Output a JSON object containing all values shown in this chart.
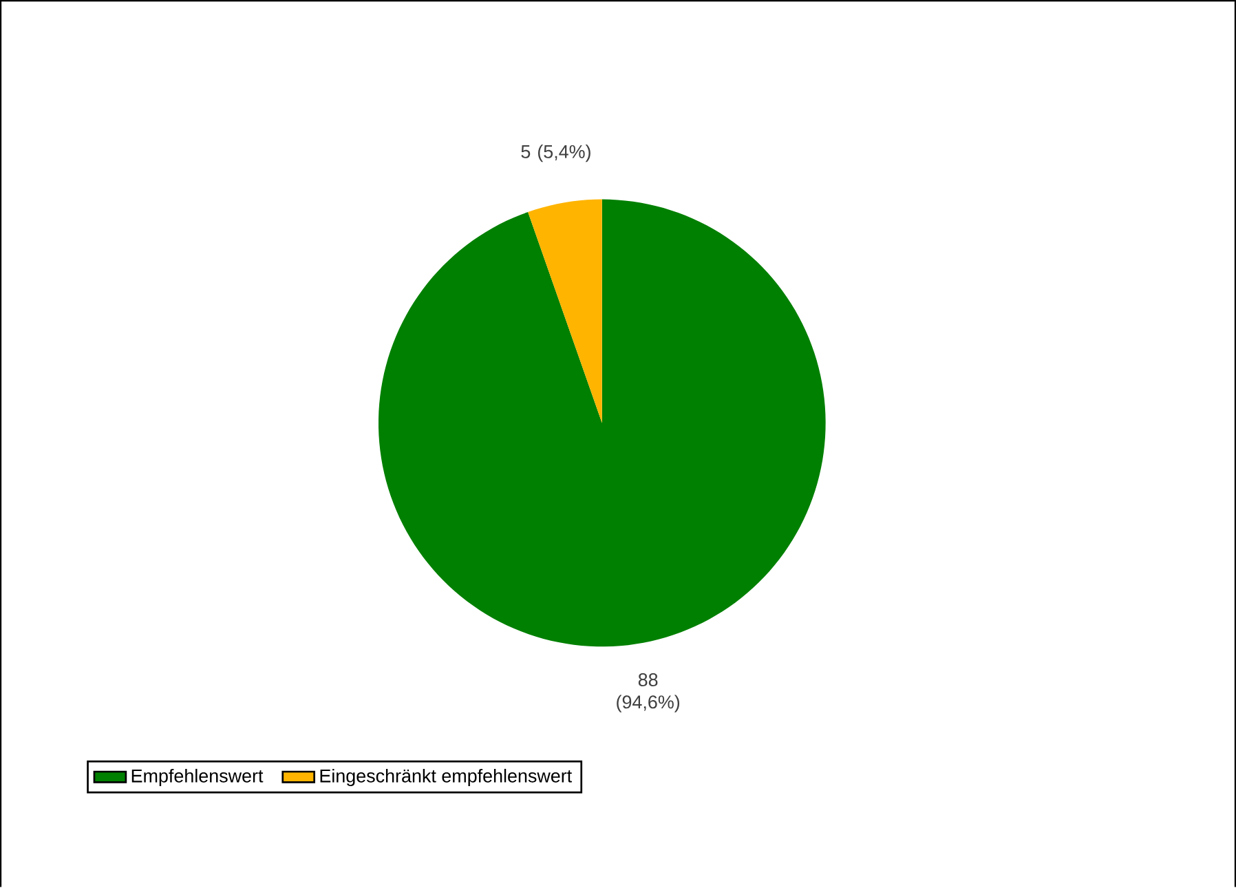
{
  "chart_data": {
    "type": "pie",
    "categories": [
      "Empfehlenswert",
      "Eingeschränkt empfehlenswert"
    ],
    "values": [
      88,
      5
    ],
    "colors": [
      "#008000",
      "#ffb400"
    ],
    "value_labels": [
      "88 (94,6%)",
      "5 (5,4%)"
    ],
    "legend": "bottom"
  }
}
